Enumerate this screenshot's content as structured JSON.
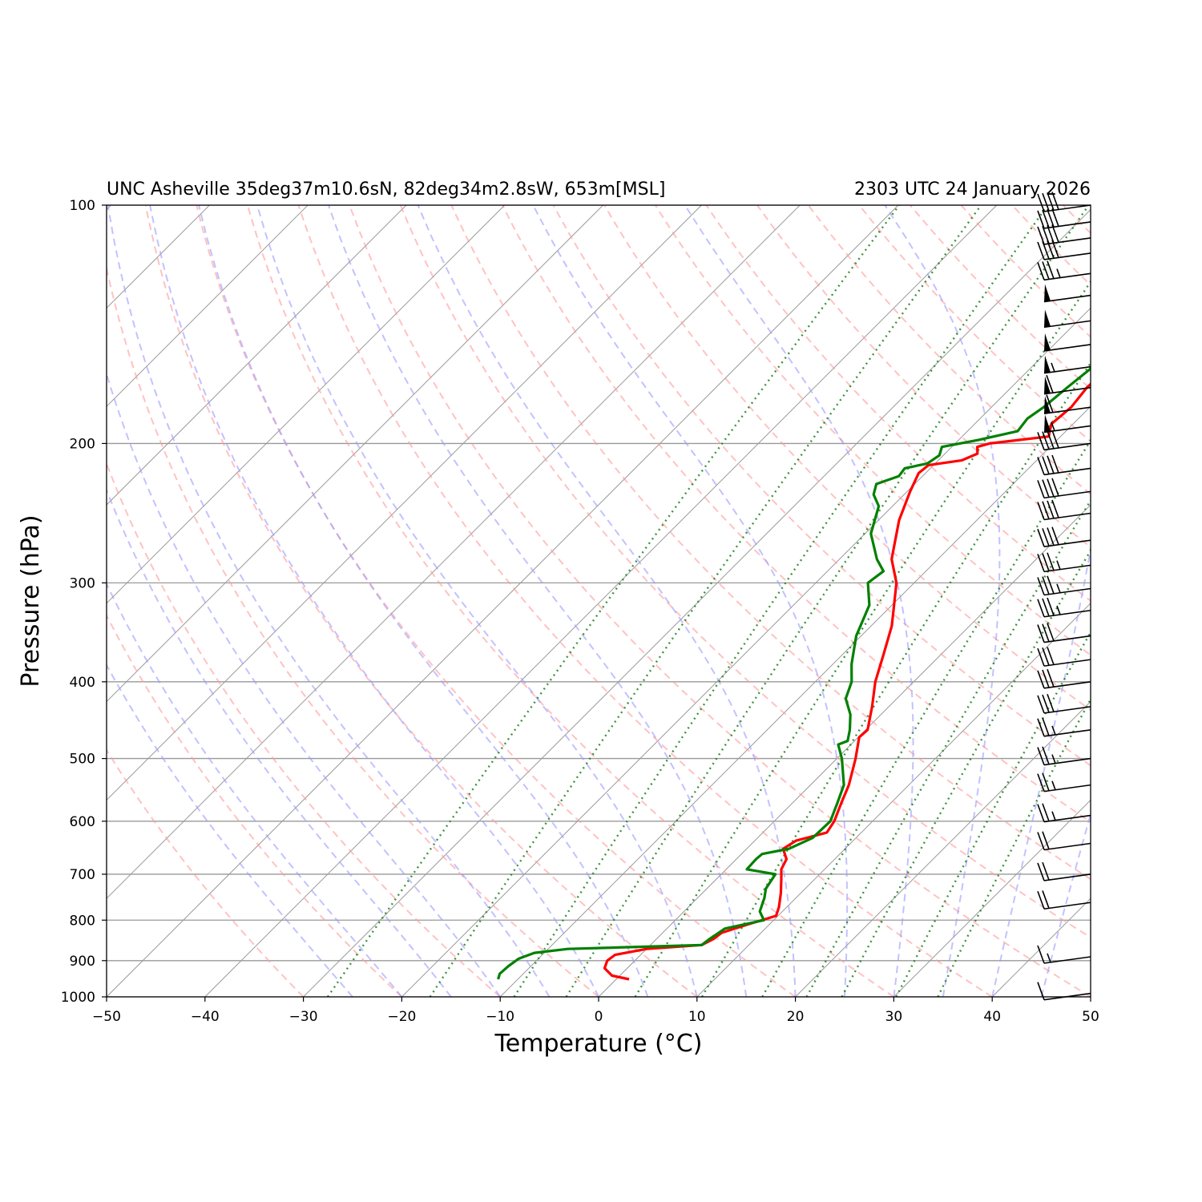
{
  "chart_data": {
    "type": "line",
    "chart_kind": "skew-T log-P sounding",
    "title_left": "UNC Asheville 35deg37m10.6sN, 82deg34m2.8sW, 653m[MSL]",
    "title_right": "2303 UTC 24 January 2026",
    "xlabel": "Temperature (°C)",
    "ylabel": "Pressure (hPa)",
    "xlim": [
      -50,
      50
    ],
    "ylim": [
      1000,
      100
    ],
    "y_scale": "log",
    "x_ticks": [
      -50,
      -40,
      -30,
      -20,
      -10,
      0,
      10,
      20,
      30,
      40,
      50
    ],
    "x_tick_labels": [
      "−50",
      "−40",
      "−30",
      "−20",
      "−10",
      "0",
      "10",
      "20",
      "30",
      "40",
      "50"
    ],
    "y_ticks": [
      1000,
      900,
      800,
      700,
      600,
      500,
      400,
      300,
      200,
      100
    ],
    "y_tick_labels": [
      "1000",
      "900",
      "800",
      "700",
      "600",
      "500",
      "400",
      "300",
      "200",
      "100"
    ],
    "grid": true,
    "colors": {
      "temperature": "#ff0000",
      "dewpoint": "#008000",
      "dry_adiabat": "#ff9999",
      "moist_adiabat": "#9999ff",
      "mixing_ratio": "#1a7f1a",
      "isotherm": "#999999"
    },
    "series": [
      {
        "key": "temperature",
        "points": [
          [
            950,
            1.3
          ],
          [
            940,
            -0.8
          ],
          [
            920,
            -2.3
          ],
          [
            900,
            -2.8
          ],
          [
            885,
            -2.6
          ],
          [
            870,
            0.0
          ],
          [
            860,
            5.2
          ],
          [
            845,
            5.8
          ],
          [
            830,
            6.0
          ],
          [
            810,
            7.8
          ],
          [
            790,
            9.8
          ],
          [
            770,
            9.2
          ],
          [
            740,
            8.0
          ],
          [
            710,
            6.6
          ],
          [
            690,
            5.6
          ],
          [
            670,
            5.1
          ],
          [
            650,
            3.7
          ],
          [
            635,
            4.2
          ],
          [
            620,
            6.5
          ],
          [
            600,
            6.1
          ],
          [
            570,
            5.0
          ],
          [
            540,
            3.9
          ],
          [
            500,
            1.9
          ],
          [
            470,
            0.1
          ],
          [
            460,
            0.2
          ],
          [
            430,
            -1.7
          ],
          [
            400,
            -3.9
          ],
          [
            370,
            -5.8
          ],
          [
            340,
            -7.9
          ],
          [
            300,
            -11.8
          ],
          [
            280,
            -14.7
          ],
          [
            250,
            -17.9
          ],
          [
            230,
            -19.7
          ],
          [
            218,
            -20.7
          ],
          [
            213,
            -20.5
          ],
          [
            210,
            -17.6
          ],
          [
            206,
            -16.7
          ],
          [
            202,
            -17.4
          ],
          [
            200,
            -16.5
          ],
          [
            196,
            -11.2
          ],
          [
            189,
            -12.2
          ],
          [
            180,
            -11.9
          ],
          [
            170,
            -12.3
          ],
          [
            160,
            -12.1
          ],
          [
            150,
            -11.5
          ],
          [
            140,
            -11.7
          ],
          [
            132,
            -9.4
          ],
          [
            128,
            -9.7
          ],
          [
            123,
            -10.7
          ],
          [
            118,
            -11.1
          ],
          [
            112,
            -12.9
          ],
          [
            108,
            -13.2
          ],
          [
            104,
            -14.5
          ],
          [
            102,
            -14.4
          ],
          [
            100,
            -14.1
          ]
        ]
      },
      {
        "key": "dewpoint",
        "points": [
          [
            950,
            -12.0
          ],
          [
            935,
            -12.4
          ],
          [
            915,
            -12.3
          ],
          [
            895,
            -12.0
          ],
          [
            880,
            -11.0
          ],
          [
            870,
            -8.0
          ],
          [
            860,
            5.2
          ],
          [
            845,
            5.4
          ],
          [
            820,
            5.9
          ],
          [
            800,
            9.0
          ],
          [
            780,
            7.7
          ],
          [
            750,
            6.8
          ],
          [
            730,
            6.0
          ],
          [
            700,
            5.5
          ],
          [
            690,
            2.1
          ],
          [
            670,
            2.0
          ],
          [
            660,
            2.1
          ],
          [
            650,
            4.3
          ],
          [
            630,
            5.6
          ],
          [
            600,
            5.7
          ],
          [
            570,
            4.6
          ],
          [
            540,
            3.4
          ],
          [
            500,
            0.5
          ],
          [
            480,
            -1.3
          ],
          [
            475,
            -0.7
          ],
          [
            460,
            -1.6
          ],
          [
            440,
            -3.1
          ],
          [
            420,
            -5.2
          ],
          [
            400,
            -6.3
          ],
          [
            380,
            -8.1
          ],
          [
            350,
            -10.5
          ],
          [
            320,
            -12.3
          ],
          [
            300,
            -14.7
          ],
          [
            290,
            -14.3
          ],
          [
            280,
            -16.2
          ],
          [
            260,
            -19.4
          ],
          [
            240,
            -21.4
          ],
          [
            232,
            -23.1
          ],
          [
            225,
            -23.9
          ],
          [
            220,
            -22.4
          ],
          [
            215,
            -22.6
          ],
          [
            212,
            -20.8
          ],
          [
            207,
            -20.4
          ],
          [
            202,
            -21.0
          ],
          [
            198,
            -18.0
          ],
          [
            193,
            -14.9
          ],
          [
            186,
            -15.2
          ],
          [
            180,
            -14.7
          ],
          [
            170,
            -14.3
          ],
          [
            160,
            -13.8
          ],
          [
            150,
            -13.4
          ],
          [
            142,
            -13.0
          ],
          [
            136,
            -12.4
          ],
          [
            130,
            -12.0
          ],
          [
            120,
            -13.0
          ],
          [
            112,
            -13.6
          ],
          [
            106,
            -15.1
          ],
          [
            102,
            -15.7
          ],
          [
            100,
            -15.3
          ]
        ]
      }
    ],
    "wind_barbs": [
      {
        "p": 100,
        "speed_kt": 40
      },
      {
        "p": 105,
        "speed_kt": 40
      },
      {
        "p": 110,
        "speed_kt": 40
      },
      {
        "p": 115,
        "speed_kt": 40
      },
      {
        "p": 122,
        "speed_kt": 35
      },
      {
        "p": 130,
        "speed_kt": 50
      },
      {
        "p": 140,
        "speed_kt": 50
      },
      {
        "p": 150,
        "speed_kt": 50
      },
      {
        "p": 160,
        "speed_kt": 55
      },
      {
        "p": 170,
        "speed_kt": 60
      },
      {
        "p": 180,
        "speed_kt": 60
      },
      {
        "p": 190,
        "speed_kt": 55
      },
      {
        "p": 200,
        "speed_kt": 40
      },
      {
        "p": 215,
        "speed_kt": 40
      },
      {
        "p": 230,
        "speed_kt": 40
      },
      {
        "p": 245,
        "speed_kt": 40
      },
      {
        "p": 265,
        "speed_kt": 40
      },
      {
        "p": 285,
        "speed_kt": 35
      },
      {
        "p": 305,
        "speed_kt": 35
      },
      {
        "p": 325,
        "speed_kt": 35
      },
      {
        "p": 350,
        "speed_kt": 30
      },
      {
        "p": 375,
        "speed_kt": 30
      },
      {
        "p": 400,
        "speed_kt": 30
      },
      {
        "p": 430,
        "speed_kt": 30
      },
      {
        "p": 460,
        "speed_kt": 25
      },
      {
        "p": 500,
        "speed_kt": 25
      },
      {
        "p": 540,
        "speed_kt": 25
      },
      {
        "p": 590,
        "speed_kt": 25
      },
      {
        "p": 640,
        "speed_kt": 20
      },
      {
        "p": 700,
        "speed_kt": 20
      },
      {
        "p": 760,
        "speed_kt": 20
      },
      {
        "p": 890,
        "speed_kt": 15
      },
      {
        "p": 990,
        "speed_kt": 10
      }
    ]
  }
}
